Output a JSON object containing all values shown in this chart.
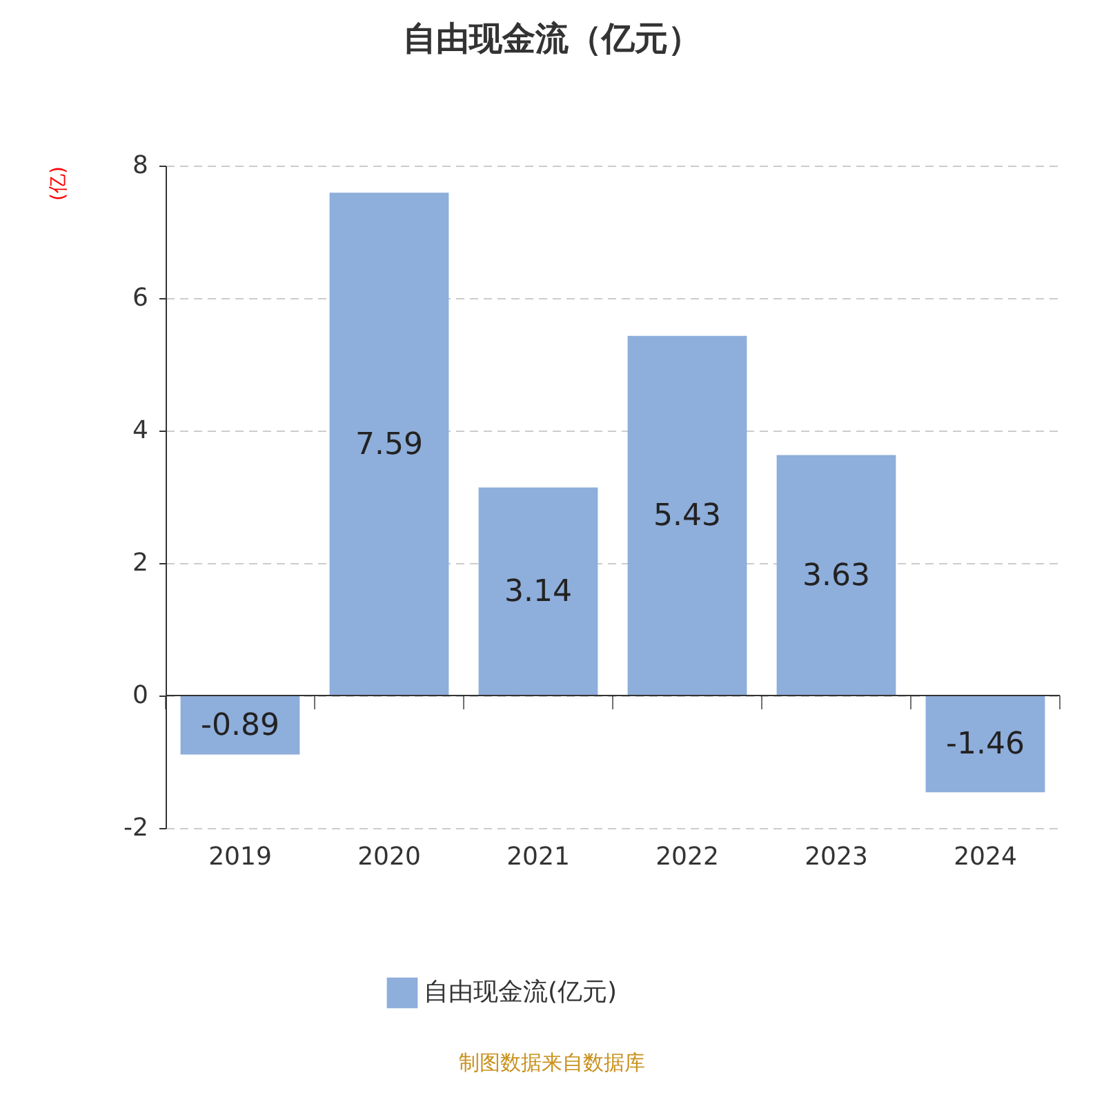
{
  "chart_data": {
    "type": "bar",
    "title": "自由现金流（亿元）",
    "ylabel": "(亿)",
    "categories": [
      "2019",
      "2020",
      "2021",
      "2022",
      "2023",
      "2024"
    ],
    "series": [
      {
        "name": "自由现金流(亿元)",
        "color": "#8eaedb",
        "values": [
          -0.89,
          7.59,
          3.14,
          5.43,
          3.63,
          -1.46
        ]
      }
    ],
    "ylim": [
      -2,
      8
    ],
    "yticks": [
      -2,
      0,
      2,
      4,
      6,
      8
    ],
    "grid": "y",
    "data_labels": true,
    "legend": "bottom",
    "annotations": [
      "制图数据来自数据库"
    ]
  }
}
